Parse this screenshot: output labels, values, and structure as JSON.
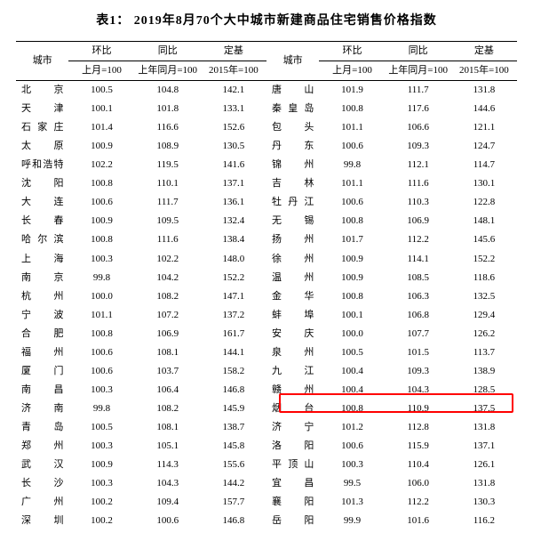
{
  "title": "表1：  2019年8月70个大中城市新建商品住宅销售价格指数",
  "headers": {
    "city": "城市",
    "mom": "环比",
    "yoy": "同比",
    "base": "定基",
    "mom_sub": "上月=100",
    "yoy_sub": "上年同月=100",
    "base_sub": "2015年=100"
  },
  "highlight_row_index": 17,
  "highlight_color": "#ff0000",
  "rows": [
    {
      "l": {
        "city": "北    京",
        "mom": "100.5",
        "yoy": "104.8",
        "base": "142.1"
      },
      "r": {
        "city": "唐    山",
        "mom": "101.9",
        "yoy": "111.7",
        "base": "131.8"
      }
    },
    {
      "l": {
        "city": "天    津",
        "mom": "100.1",
        "yoy": "101.8",
        "base": "133.1"
      },
      "r": {
        "city": "秦 皇 岛",
        "mom": "100.8",
        "yoy": "117.6",
        "base": "144.6"
      }
    },
    {
      "l": {
        "city": "石 家 庄",
        "mom": "101.4",
        "yoy": "116.6",
        "base": "152.6"
      },
      "r": {
        "city": "包    头",
        "mom": "101.1",
        "yoy": "106.6",
        "base": "121.1"
      }
    },
    {
      "l": {
        "city": "太    原",
        "mom": "100.9",
        "yoy": "108.9",
        "base": "130.5"
      },
      "r": {
        "city": "丹    东",
        "mom": "100.6",
        "yoy": "109.3",
        "base": "124.7"
      }
    },
    {
      "l": {
        "city": "呼和浩特",
        "mom": "102.2",
        "yoy": "119.5",
        "base": "141.6"
      },
      "r": {
        "city": "锦    州",
        "mom": "99.8",
        "yoy": "112.1",
        "base": "114.7"
      }
    },
    {
      "l": {
        "city": "沈    阳",
        "mom": "100.8",
        "yoy": "110.1",
        "base": "137.1"
      },
      "r": {
        "city": "吉    林",
        "mom": "101.1",
        "yoy": "111.6",
        "base": "130.1"
      }
    },
    {
      "l": {
        "city": "大    连",
        "mom": "100.6",
        "yoy": "111.7",
        "base": "136.1"
      },
      "r": {
        "city": "牡 丹 江",
        "mom": "100.6",
        "yoy": "110.3",
        "base": "122.8"
      }
    },
    {
      "l": {
        "city": "长    春",
        "mom": "100.9",
        "yoy": "109.5",
        "base": "132.4"
      },
      "r": {
        "city": "无    锡",
        "mom": "100.8",
        "yoy": "106.9",
        "base": "148.1"
      }
    },
    {
      "l": {
        "city": "哈 尔 滨",
        "mom": "100.8",
        "yoy": "111.6",
        "base": "138.4"
      },
      "r": {
        "city": "扬    州",
        "mom": "101.7",
        "yoy": "112.2",
        "base": "145.6"
      }
    },
    {
      "l": {
        "city": "上    海",
        "mom": "100.3",
        "yoy": "102.2",
        "base": "148.0"
      },
      "r": {
        "city": "徐    州",
        "mom": "100.9",
        "yoy": "114.1",
        "base": "152.2"
      }
    },
    {
      "l": {
        "city": "南    京",
        "mom": "99.8",
        "yoy": "104.2",
        "base": "152.2"
      },
      "r": {
        "city": "温    州",
        "mom": "100.9",
        "yoy": "108.5",
        "base": "118.6"
      }
    },
    {
      "l": {
        "city": "杭    州",
        "mom": "100.0",
        "yoy": "108.2",
        "base": "147.1"
      },
      "r": {
        "city": "金    华",
        "mom": "100.8",
        "yoy": "106.3",
        "base": "132.5"
      }
    },
    {
      "l": {
        "city": "宁    波",
        "mom": "101.1",
        "yoy": "107.2",
        "base": "137.2"
      },
      "r": {
        "city": "蚌    埠",
        "mom": "100.1",
        "yoy": "106.8",
        "base": "129.4"
      }
    },
    {
      "l": {
        "city": "合    肥",
        "mom": "100.8",
        "yoy": "106.9",
        "base": "161.7"
      },
      "r": {
        "city": "安    庆",
        "mom": "100.0",
        "yoy": "107.7",
        "base": "126.2"
      }
    },
    {
      "l": {
        "city": "福    州",
        "mom": "100.6",
        "yoy": "108.1",
        "base": "144.1"
      },
      "r": {
        "city": "泉    州",
        "mom": "100.5",
        "yoy": "101.5",
        "base": "113.7"
      }
    },
    {
      "l": {
        "city": "厦    门",
        "mom": "100.6",
        "yoy": "103.7",
        "base": "158.2"
      },
      "r": {
        "city": "九    江",
        "mom": "100.4",
        "yoy": "109.3",
        "base": "138.9"
      }
    },
    {
      "l": {
        "city": "南    昌",
        "mom": "100.3",
        "yoy": "106.4",
        "base": "146.8"
      },
      "r": {
        "city": "赣    州",
        "mom": "100.4",
        "yoy": "104.3",
        "base": "128.5"
      }
    },
    {
      "l": {
        "city": "济    南",
        "mom": "99.8",
        "yoy": "108.2",
        "base": "145.9"
      },
      "r": {
        "city": "烟    台",
        "mom": "100.8",
        "yoy": "110.9",
        "base": "137.5"
      }
    },
    {
      "l": {
        "city": "青    岛",
        "mom": "100.5",
        "yoy": "108.1",
        "base": "138.7"
      },
      "r": {
        "city": "济    宁",
        "mom": "101.2",
        "yoy": "112.8",
        "base": "131.8"
      }
    },
    {
      "l": {
        "city": "郑    州",
        "mom": "100.3",
        "yoy": "105.1",
        "base": "145.8"
      },
      "r": {
        "city": "洛    阳",
        "mom": "100.6",
        "yoy": "115.9",
        "base": "137.1"
      }
    },
    {
      "l": {
        "city": "武    汉",
        "mom": "100.9",
        "yoy": "114.3",
        "base": "155.6"
      },
      "r": {
        "city": "平 顶 山",
        "mom": "100.3",
        "yoy": "110.4",
        "base": "126.1"
      }
    },
    {
      "l": {
        "city": "长    沙",
        "mom": "100.3",
        "yoy": "104.3",
        "base": "144.2"
      },
      "r": {
        "city": "宜    昌",
        "mom": "99.5",
        "yoy": "106.0",
        "base": "131.8"
      }
    },
    {
      "l": {
        "city": "广    州",
        "mom": "100.2",
        "yoy": "109.4",
        "base": "157.7"
      },
      "r": {
        "city": "襄    阳",
        "mom": "101.3",
        "yoy": "112.2",
        "base": "130.3"
      }
    },
    {
      "l": {
        "city": "深    圳",
        "mom": "100.2",
        "yoy": "100.6",
        "base": "146.8"
      },
      "r": {
        "city": "岳    阳",
        "mom": "99.9",
        "yoy": "101.6",
        "base": "116.2"
      }
    }
  ]
}
